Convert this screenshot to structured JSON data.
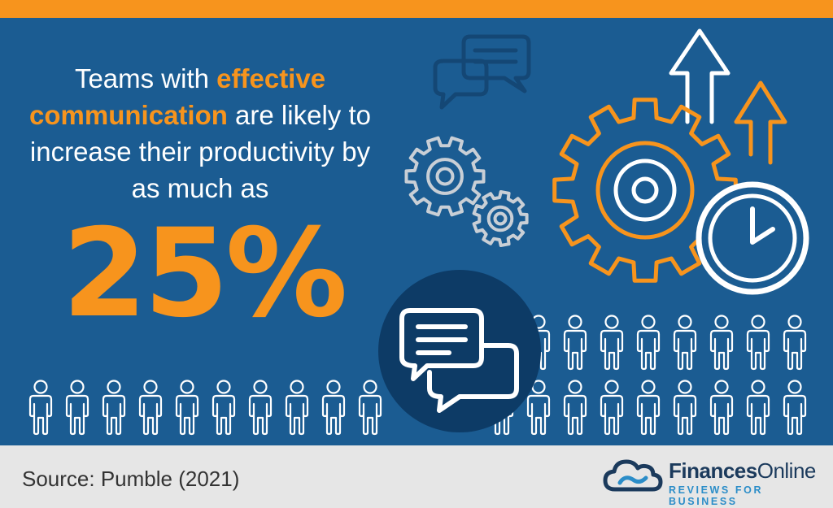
{
  "headline": {
    "line1_plain": "Teams with ",
    "line1_highlight": "effective",
    "line2_highlight": "communication",
    "line2_plain": " are likely to",
    "line3": "increase their productivity by",
    "line4": "as much as"
  },
  "stat": {
    "value": "25%"
  },
  "footer": {
    "source": "Source: Pumble (2021)"
  },
  "brand": {
    "name_bold": "Finances",
    "name_regular": "Online",
    "tagline": "REVIEWS FOR BUSINESS"
  },
  "icons": [
    "chat-bubbles-icon",
    "gears-icon",
    "growth-arrows-icon",
    "cog-icon",
    "clock-icon",
    "people-icon",
    "cloud-logo-icon"
  ],
  "colors": {
    "background": "#1b5c92",
    "accent": "#f7941d",
    "circle": "#0d3b66",
    "footer": "#e6e6e6",
    "brand_dark": "#1b3a5c",
    "brand_light": "#2b8dc8"
  }
}
